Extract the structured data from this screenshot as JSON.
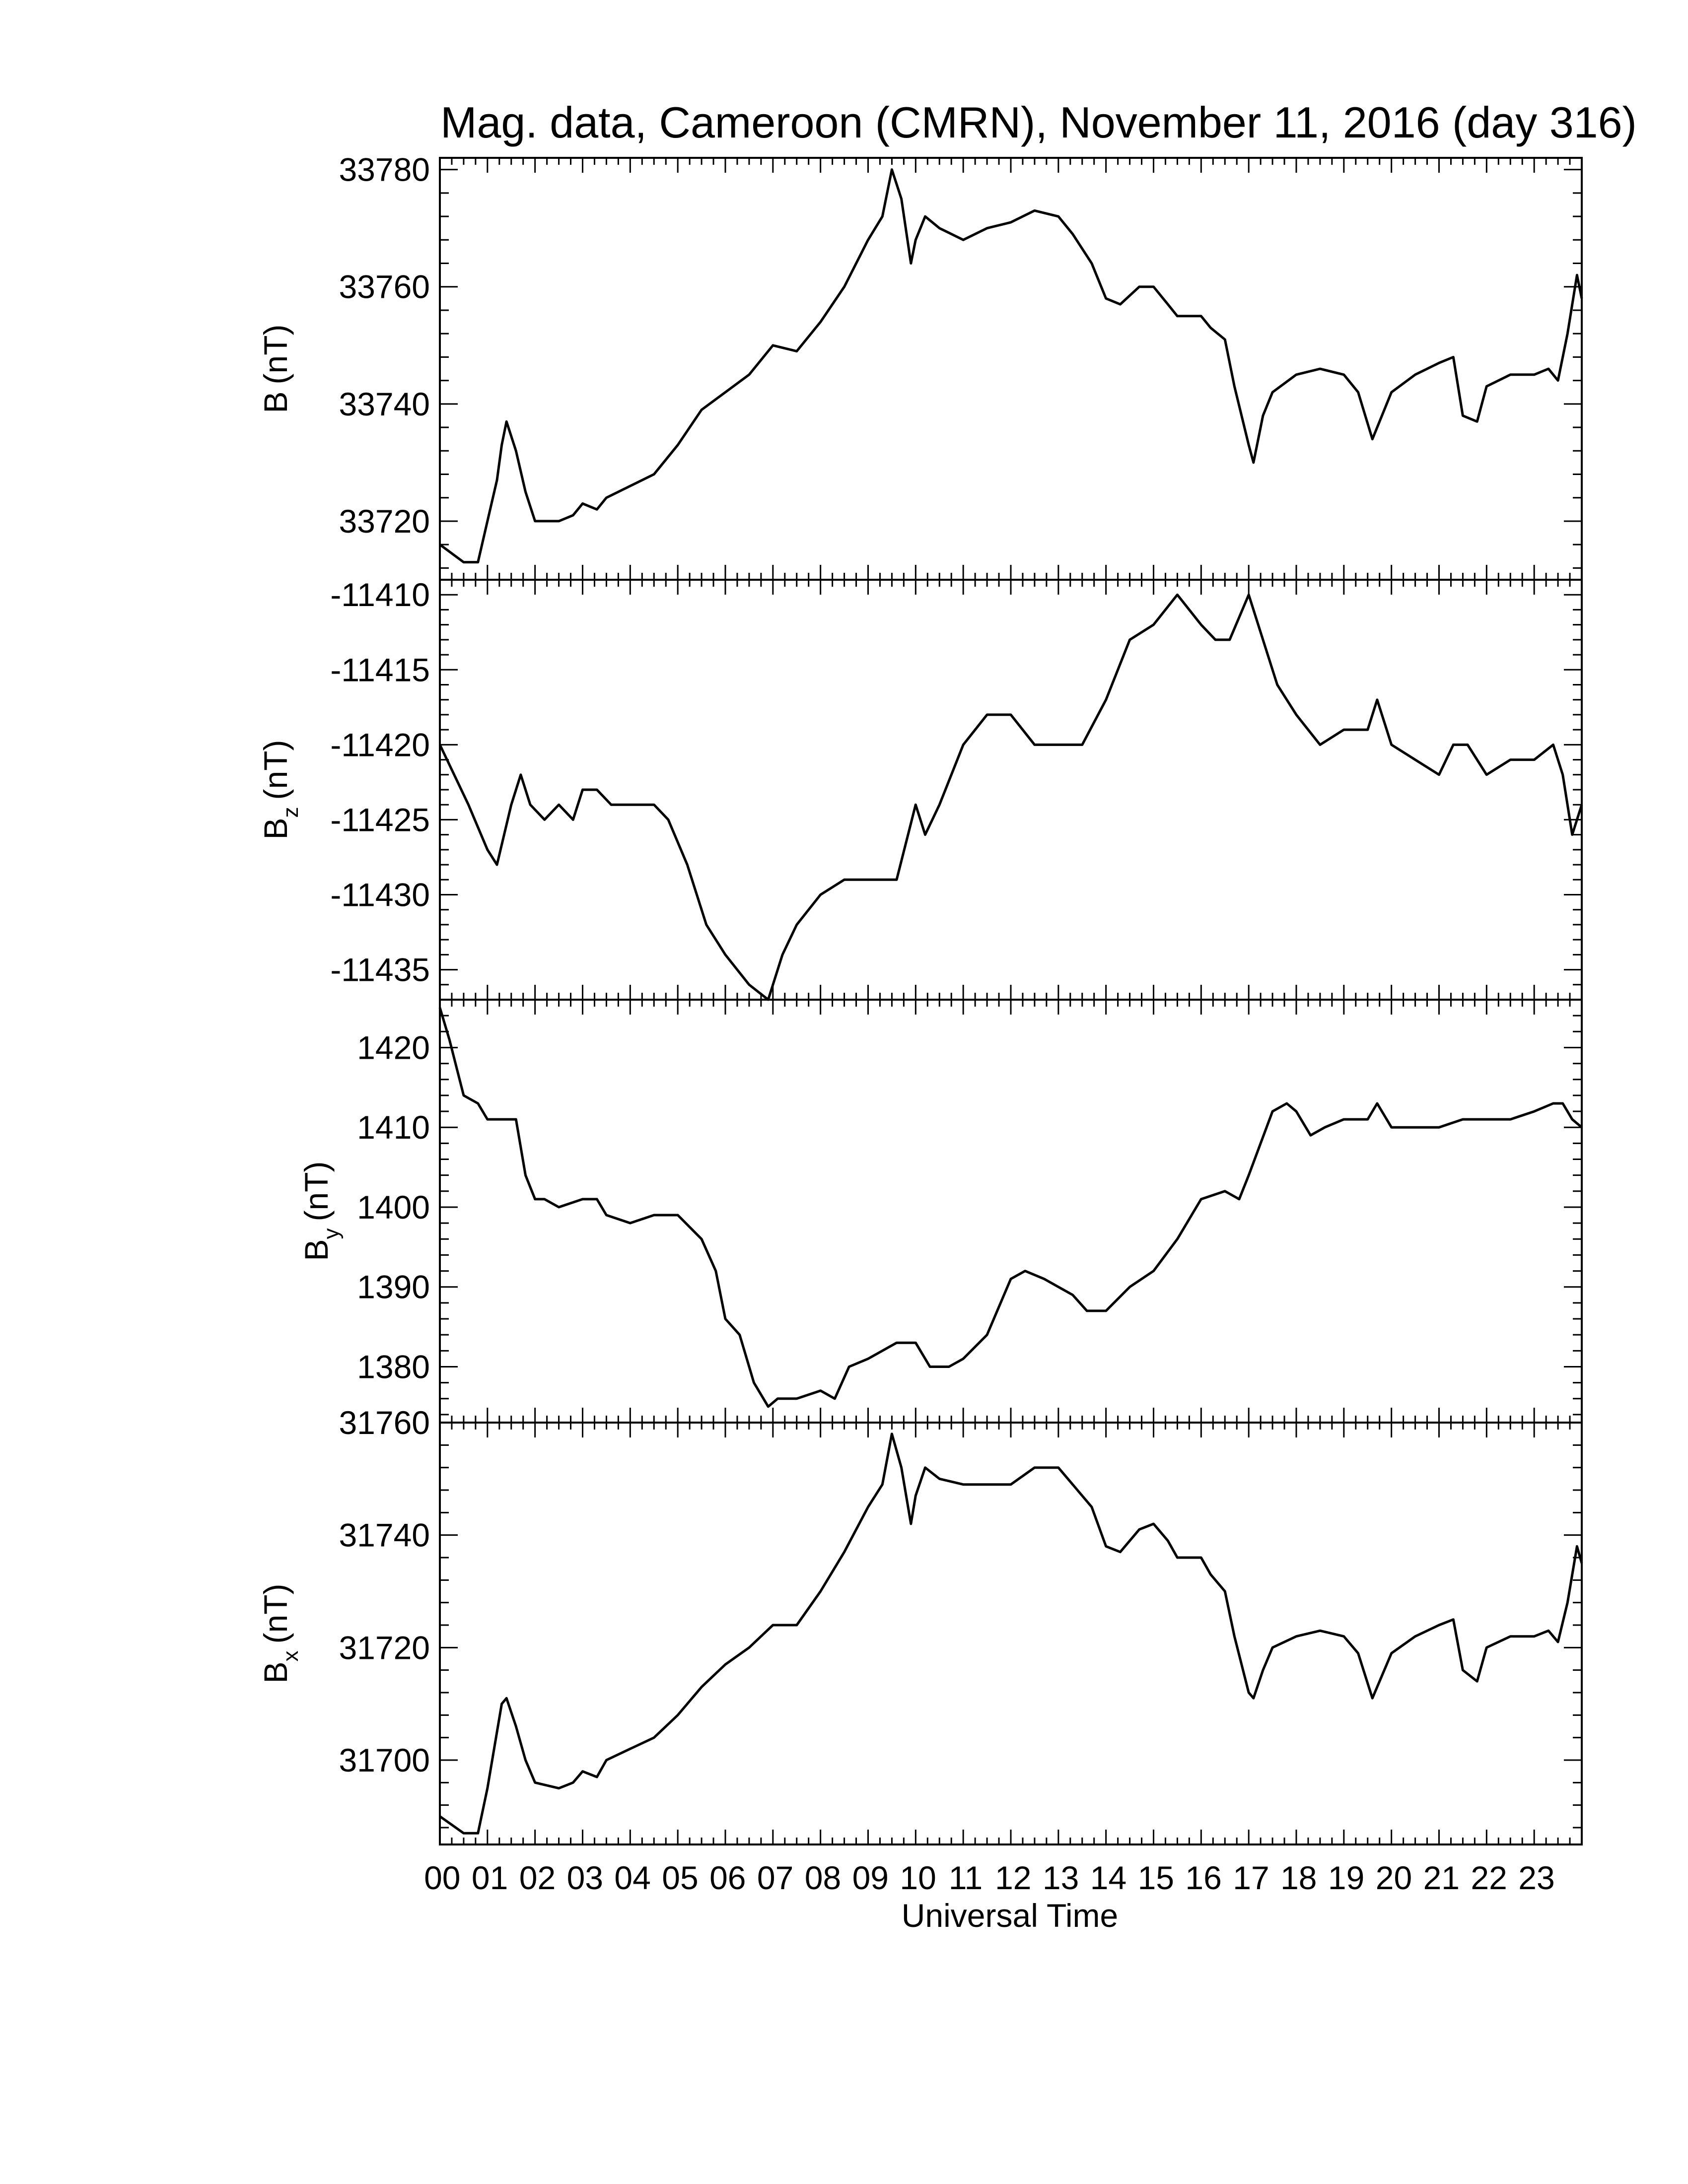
{
  "chart_data": [
    {
      "type": "line",
      "panel": "B",
      "title": "Mag. data, Cameroon (CMRN), November 11, 2016 (day 316)",
      "ylabel_main": "B",
      "ylabel_sub": "",
      "ylabel_unit": "(nT)",
      "ylim": [
        33710,
        33782
      ],
      "yticks": [
        "33720",
        "33740",
        "33760",
        "33780"
      ],
      "series": [
        {
          "x": [
            0,
            0.5,
            0.8,
            1.0,
            1.2,
            1.3,
            1.4,
            1.6,
            1.8,
            2.0,
            2.5,
            2.8,
            3.0,
            3.3,
            3.5,
            4.0,
            4.5,
            5.0,
            5.5,
            6.0,
            6.5,
            7.0,
            7.5,
            8.0,
            8.5,
            9.0,
            9.3,
            9.5,
            9.7,
            9.9,
            10.0,
            10.2,
            10.5,
            11.0,
            11.5,
            12.0,
            12.5,
            13.0,
            13.3,
            13.7,
            14.0,
            14.3,
            14.7,
            15.0,
            15.3,
            15.5,
            16.0,
            16.2,
            16.5,
            16.7,
            17.0,
            17.1,
            17.3,
            17.5,
            18.0,
            18.5,
            19.0,
            19.3,
            19.6,
            19.8,
            20.0,
            20.5,
            21.0,
            21.3,
            21.5,
            21.8,
            22.0,
            22.5,
            23.0,
            23.3,
            23.5,
            23.7,
            23.9,
            24.0
          ],
          "values": [
            33716,
            33713,
            33713,
            33720,
            33727,
            33733,
            33737,
            33732,
            33725,
            33720,
            33720,
            33721,
            33723,
            33722,
            33724,
            33726,
            33728,
            33733,
            33739,
            33742,
            33745,
            33750,
            33749,
            33754,
            33760,
            33768,
            33772,
            33780,
            33775,
            33764,
            33768,
            33772,
            33770,
            33768,
            33770,
            33771,
            33773,
            33772,
            33769,
            33764,
            33758,
            33757,
            33760,
            33760,
            33757,
            33755,
            33755,
            33753,
            33751,
            33743,
            33733,
            33730,
            33738,
            33742,
            33745,
            33746,
            33745,
            33742,
            33734,
            33738,
            33742,
            33745,
            33747,
            33748,
            33738,
            33737,
            33743,
            33745,
            33745,
            33746,
            33744,
            33752,
            33762,
            33758
          ]
        }
      ]
    },
    {
      "type": "line",
      "panel": "Bz",
      "ylabel_main": "B",
      "ylabel_sub": "z",
      "ylabel_unit": "(nT)",
      "ylim": [
        -11437,
        -11409
      ],
      "yticks": [
        "-11435",
        "-11430",
        "-11425",
        "-11420",
        "-11415",
        "-11410"
      ],
      "series": [
        {
          "x": [
            0,
            0.3,
            0.6,
            1.0,
            1.2,
            1.5,
            1.7,
            1.9,
            2.2,
            2.5,
            2.8,
            3.0,
            3.3,
            3.6,
            4.0,
            4.5,
            4.8,
            5.2,
            5.6,
            6.0,
            6.5,
            6.9,
            7.2,
            7.5,
            8.0,
            8.5,
            9.0,
            9.3,
            9.6,
            10.0,
            10.2,
            10.5,
            11.0,
            11.5,
            12.0,
            12.5,
            13.0,
            13.5,
            14.0,
            14.5,
            15.0,
            15.5,
            16.0,
            16.3,
            16.6,
            17.0,
            17.3,
            17.6,
            18.0,
            18.5,
            19.0,
            19.5,
            19.7,
            20.0,
            20.5,
            21.0,
            21.3,
            21.6,
            21.8,
            22.0,
            22.5,
            23.0,
            23.4,
            23.6,
            23.8,
            24.0
          ],
          "values": [
            -11420,
            -11422,
            -11424,
            -11427,
            -11428,
            -11424,
            -11422,
            -11424,
            -11425,
            -11424,
            -11425,
            -11423,
            -11423,
            -11424,
            -11424,
            -11424,
            -11425,
            -11428,
            -11432,
            -11434,
            -11436,
            -11437,
            -11434,
            -11432,
            -11430,
            -11429,
            -11429,
            -11429,
            -11429,
            -11424,
            -11426,
            -11424,
            -11420,
            -11418,
            -11418,
            -11420,
            -11420,
            -11420,
            -11417,
            -11413,
            -11412,
            -11410,
            -11412,
            -11413,
            -11413,
            -11410,
            -11413,
            -11416,
            -11418,
            -11420,
            -11419,
            -11419,
            -11417,
            -11420,
            -11421,
            -11422,
            -11420,
            -11420,
            -11421,
            -11422,
            -11421,
            -11421,
            -11420,
            -11422,
            -11426,
            -11424
          ]
        }
      ]
    },
    {
      "type": "line",
      "panel": "By",
      "ylabel_main": "B",
      "ylabel_sub": "y",
      "ylabel_unit": "(nT)",
      "ylim": [
        1373,
        1426
      ],
      "yticks": [
        "1380",
        "1390",
        "1400",
        "1410",
        "1420"
      ],
      "series": [
        {
          "x": [
            0,
            0.2,
            0.5,
            0.8,
            1.0,
            1.3,
            1.6,
            1.8,
            2.0,
            2.2,
            2.5,
            3.0,
            3.3,
            3.5,
            4.0,
            4.5,
            5.0,
            5.5,
            5.8,
            6.0,
            6.3,
            6.6,
            6.9,
            7.1,
            7.5,
            8.0,
            8.3,
            8.6,
            9.0,
            9.3,
            9.6,
            10.0,
            10.3,
            10.7,
            11.0,
            11.5,
            12.0,
            12.3,
            12.7,
            13.0,
            13.3,
            13.6,
            14.0,
            14.5,
            15.0,
            15.5,
            16.0,
            16.5,
            16.8,
            17.0,
            17.5,
            17.8,
            18.0,
            18.3,
            18.6,
            19.0,
            19.5,
            19.7,
            20.0,
            20.5,
            21.0,
            21.5,
            22.0,
            22.5,
            23.0,
            23.4,
            23.6,
            23.8,
            24.0
          ],
          "values": [
            1425,
            1421,
            1414,
            1413,
            1411,
            1411,
            1411,
            1404,
            1401,
            1401,
            1400,
            1401,
            1401,
            1399,
            1398,
            1399,
            1399,
            1396,
            1392,
            1386,
            1384,
            1378,
            1375,
            1376,
            1376,
            1377,
            1376,
            1380,
            1381,
            1382,
            1383,
            1383,
            1380,
            1380,
            1381,
            1384,
            1391,
            1392,
            1391,
            1390,
            1389,
            1387,
            1387,
            1390,
            1392,
            1396,
            1401,
            1402,
            1401,
            1404,
            1412,
            1413,
            1412,
            1409,
            1410,
            1411,
            1411,
            1413,
            1410,
            1410,
            1410,
            1411,
            1411,
            1411,
            1412,
            1413,
            1413,
            1411,
            1410
          ]
        }
      ]
    },
    {
      "type": "line",
      "panel": "Bx",
      "ylabel_main": "B",
      "ylabel_sub": "x",
      "ylabel_unit": "(nT)",
      "ylim": [
        31685,
        31760
      ],
      "yticks": [
        "31700",
        "31720",
        "31740",
        "31760"
      ],
      "series": [
        {
          "x": [
            0,
            0.5,
            0.8,
            1.0,
            1.2,
            1.3,
            1.4,
            1.6,
            1.8,
            2.0,
            2.5,
            2.8,
            3.0,
            3.3,
            3.5,
            4.0,
            4.5,
            5.0,
            5.5,
            6.0,
            6.5,
            7.0,
            7.5,
            8.0,
            8.5,
            9.0,
            9.3,
            9.5,
            9.7,
            9.9,
            10.0,
            10.2,
            10.5,
            11.0,
            11.5,
            12.0,
            12.5,
            13.0,
            13.3,
            13.7,
            14.0,
            14.3,
            14.7,
            15.0,
            15.3,
            15.5,
            16.0,
            16.2,
            16.5,
            16.7,
            17.0,
            17.1,
            17.3,
            17.5,
            18.0,
            18.5,
            19.0,
            19.3,
            19.6,
            19.8,
            20.0,
            20.5,
            21.0,
            21.3,
            21.5,
            21.8,
            22.0,
            22.5,
            23.0,
            23.3,
            23.5,
            23.7,
            23.9,
            24.0
          ],
          "values": [
            31690,
            31687,
            31687,
            31695,
            31705,
            31710,
            31711,
            31706,
            31700,
            31696,
            31695,
            31696,
            31698,
            31697,
            31700,
            31702,
            31704,
            31708,
            31713,
            31717,
            31720,
            31724,
            31724,
            31730,
            31737,
            31745,
            31749,
            31758,
            31752,
            31742,
            31747,
            31752,
            31750,
            31749,
            31749,
            31749,
            31752,
            31752,
            31749,
            31745,
            31738,
            31737,
            31741,
            31742,
            31739,
            31736,
            31736,
            31733,
            31730,
            31722,
            31712,
            31711,
            31716,
            31720,
            31722,
            31723,
            31722,
            31719,
            31711,
            31715,
            31719,
            31722,
            31724,
            31725,
            31716,
            31714,
            31720,
            31722,
            31722,
            31723,
            31721,
            31728,
            31738,
            31735
          ]
        }
      ]
    }
  ],
  "xaxis": {
    "label": "Universal Time",
    "xlim": [
      0,
      24
    ],
    "ticklabels": [
      "00",
      "01",
      "02",
      "03",
      "04",
      "05",
      "06",
      "07",
      "08",
      "09",
      "10",
      "11",
      "12",
      "13",
      "14",
      "15",
      "16",
      "17",
      "18",
      "19",
      "20",
      "21",
      "22",
      "23"
    ]
  }
}
